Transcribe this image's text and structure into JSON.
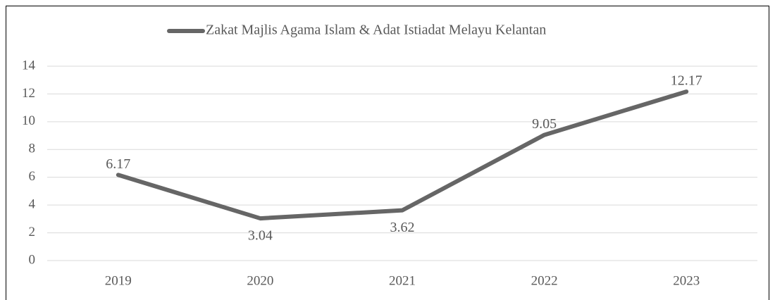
{
  "chart_data": {
    "type": "line",
    "categories": [
      "2019",
      "2020",
      "2021",
      "2022",
      "2023"
    ],
    "series": [
      {
        "name": "Zakat Majlis Agama Islam & Adat Istiadat Melayu Kelantan",
        "color": "#666666",
        "values": [
          6.17,
          3.04,
          3.62,
          9.05,
          12.17
        ]
      }
    ],
    "ylim": [
      0,
      14
    ],
    "yticks": [
      0,
      2,
      4,
      6,
      8,
      10,
      12,
      14
    ],
    "grid": true,
    "legend": "top"
  }
}
